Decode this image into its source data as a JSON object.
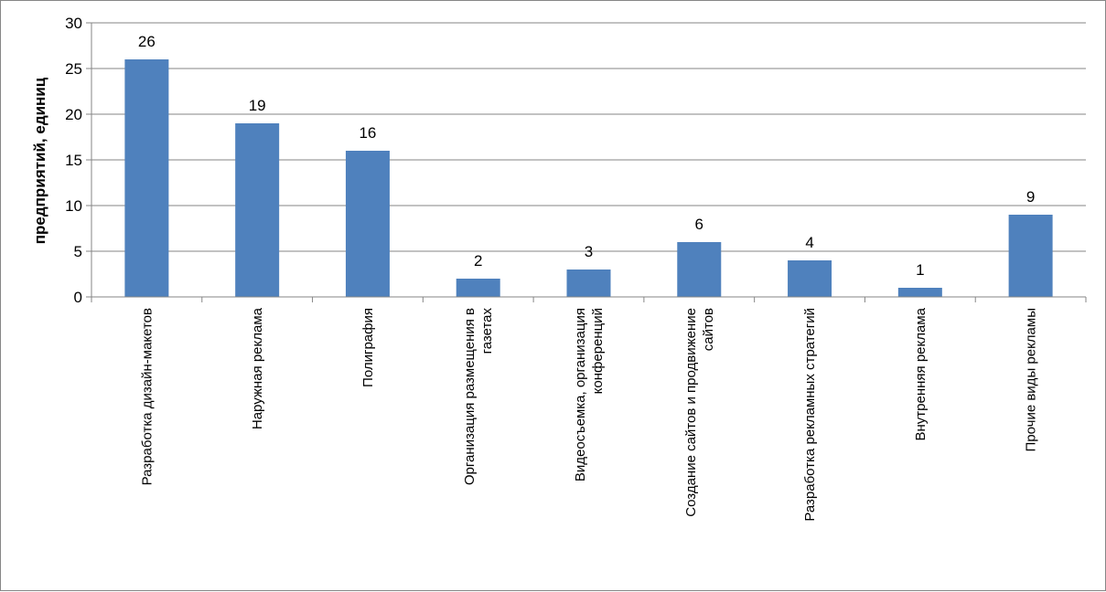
{
  "chart_data": {
    "type": "bar",
    "title": "",
    "xlabel": "",
    "ylabel": "предприятий, единиц",
    "ylim": [
      0,
      30
    ],
    "yticks": [
      0,
      5,
      10,
      15,
      20,
      25,
      30
    ],
    "grid": true,
    "legend": "none",
    "categories": [
      [
        "Разработка дизайн-макетов"
      ],
      [
        "Наружная реклама"
      ],
      [
        "Полиграфия"
      ],
      [
        "Организация размещения в",
        "газетах"
      ],
      [
        "Видеосъемка, организация",
        "конференций"
      ],
      [
        "Создание сайтов и продвижение",
        "сайтов"
      ],
      [
        "Разработка рекламных стратегий"
      ],
      [
        "Внутренняя реклама"
      ],
      [
        "Прочие виды рекламы"
      ]
    ],
    "values": [
      26,
      19,
      16,
      2,
      3,
      6,
      4,
      1,
      9
    ],
    "bar_color": "#4F81BD"
  }
}
